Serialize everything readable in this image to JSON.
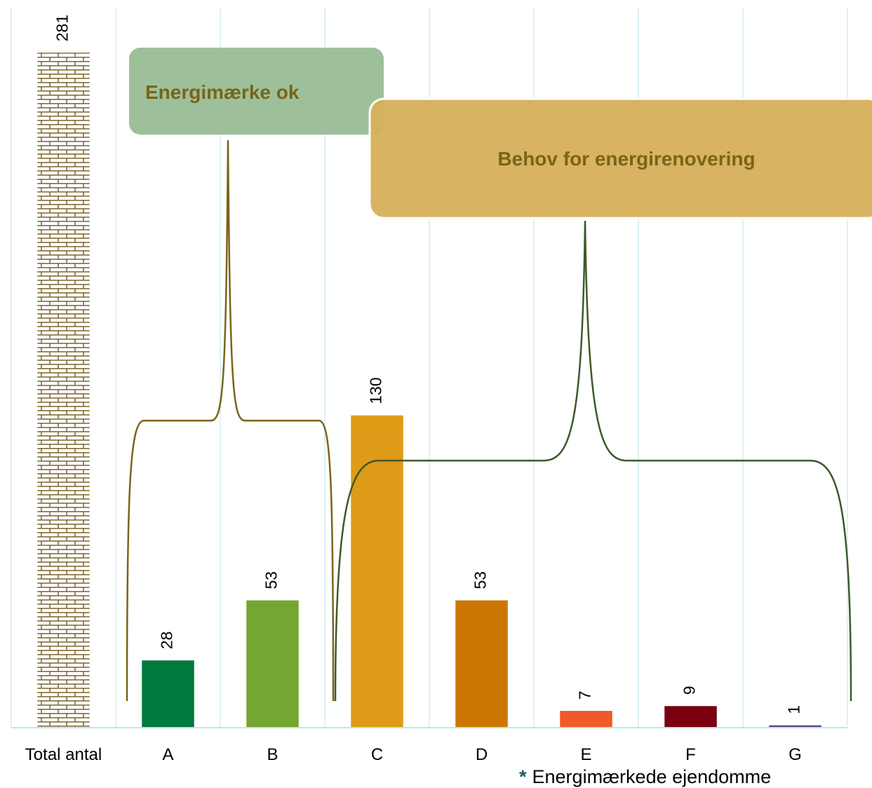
{
  "chart_data": {
    "type": "bar",
    "categories": [
      "Total antal",
      "A",
      "B",
      "C",
      "D",
      "E",
      "F",
      "G"
    ],
    "values": [
      281,
      28,
      53,
      130,
      53,
      7,
      9,
      1
    ],
    "colors": [
      "#7a6630",
      "#007a3d",
      "#76a632",
      "#de9b17",
      "#cc7703",
      "#f05a28",
      "#7a0010",
      "#5b4a8c"
    ],
    "patterns": [
      "bricks",
      null,
      null,
      null,
      null,
      null,
      null,
      null
    ],
    "ylim": [
      0,
      300
    ],
    "grid": true,
    "annotations": [
      {
        "text": "Energimærke ok",
        "color": "#7a6418"
      },
      {
        "text": "Behov for energirenovering",
        "color": "#7a6418"
      }
    ],
    "footnote_marker": "*",
    "footnote": "Energimærkede ejendomme"
  }
}
